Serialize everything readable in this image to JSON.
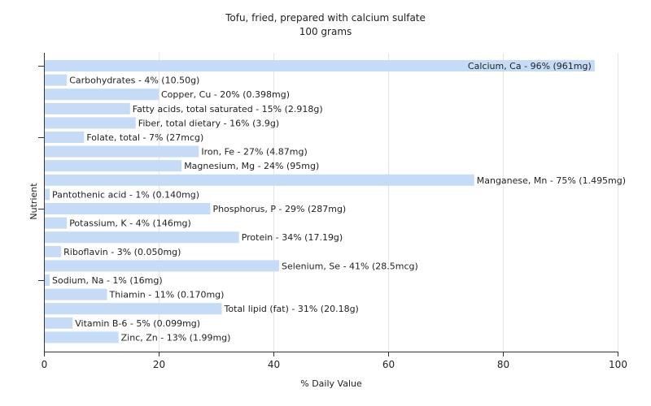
{
  "chart_data": {
    "type": "bar",
    "orientation": "horizontal",
    "title": "Tofu, fried, prepared with calcium sulfate",
    "subtitle": "100 grams",
    "xlabel": "% Daily Value",
    "ylabel": "Nutrient",
    "xlim": [
      0,
      100
    ],
    "xticks": [
      "0",
      "20",
      "40",
      "60",
      "80",
      "100"
    ],
    "grid": true,
    "bar_color": "#c6dcf6",
    "categories": [
      "Calcium, Ca",
      "Carbohydrates",
      "Copper, Cu",
      "Fatty acids, total saturated",
      "Fiber, total dietary",
      "Folate, total",
      "Iron, Fe",
      "Magnesium, Mg",
      "Manganese, Mn",
      "Pantothenic acid",
      "Phosphorus, P",
      "Potassium, K",
      "Protein",
      "Riboflavin",
      "Selenium, Se",
      "Sodium, Na",
      "Thiamin",
      "Total lipid (fat)",
      "Vitamin B-6",
      "Zinc, Zn"
    ],
    "values": [
      96,
      4,
      20,
      15,
      16,
      7,
      27,
      24,
      75,
      1,
      29,
      4,
      34,
      3,
      41,
      1,
      11,
      31,
      5,
      13
    ],
    "labels": [
      "Calcium, Ca - 96% (961mg)",
      "Carbohydrates - 4% (10.50g)",
      "Copper, Cu - 20% (0.398mg)",
      "Fatty acids, total saturated - 15% (2.918g)",
      "Fiber, total dietary - 16% (3.9g)",
      "Folate, total - 7% (27mcg)",
      "Iron, Fe - 27% (4.87mg)",
      "Magnesium, Mg - 24% (95mg)",
      "Manganese, Mn - 75% (1.495mg)",
      "Pantothenic acid - 1% (0.140mg)",
      "Phosphorus, P - 29% (287mg)",
      "Potassium, K - 4% (146mg)",
      "Protein - 34% (17.19g)",
      "Riboflavin - 3% (0.050mg)",
      "Selenium, Se - 41% (28.5mcg)",
      "Sodium, Na - 1% (16mg)",
      "Thiamin - 11% (0.170mg)",
      "Total lipid (fat) - 31% (20.18g)",
      "Vitamin B-6 - 5% (0.099mg)",
      "Zinc, Zn - 13% (1.99mg)"
    ]
  }
}
